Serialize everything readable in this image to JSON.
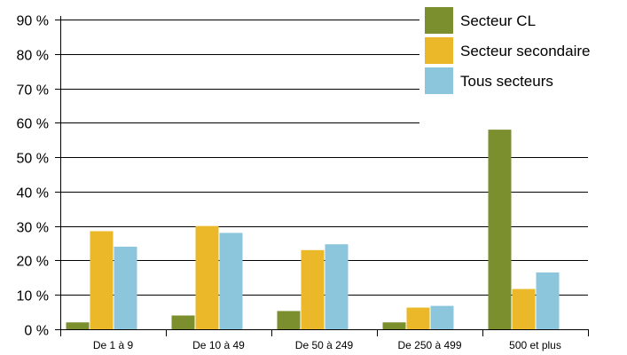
{
  "chart_data": {
    "type": "bar",
    "categories": [
      "De 1 à 9",
      "De 10 à 49",
      "De 50 à 249",
      "De 250 à 499",
      "500 et plus"
    ],
    "series": [
      {
        "name": "Secteur CL",
        "color": "#7b8f2f",
        "values": [
          2,
          4,
          5.3,
          2,
          58
        ]
      },
      {
        "name": "Secteur secondaire",
        "color": "#ebb829",
        "values": [
          28.5,
          30,
          23,
          6.3,
          11.7
        ]
      },
      {
        "name": "Tous secteurs",
        "color": "#8cc6dc",
        "values": [
          24,
          28,
          24.7,
          6.8,
          16.5
        ]
      }
    ],
    "y_ticks": [
      "0 %",
      "10 %",
      "20 %",
      "30 %",
      "40 %",
      "50 %",
      "60 %",
      "70 %",
      "80 %",
      "90 %"
    ],
    "ylim": [
      0,
      90
    ],
    "grid": true,
    "legend_position": "top-right"
  }
}
